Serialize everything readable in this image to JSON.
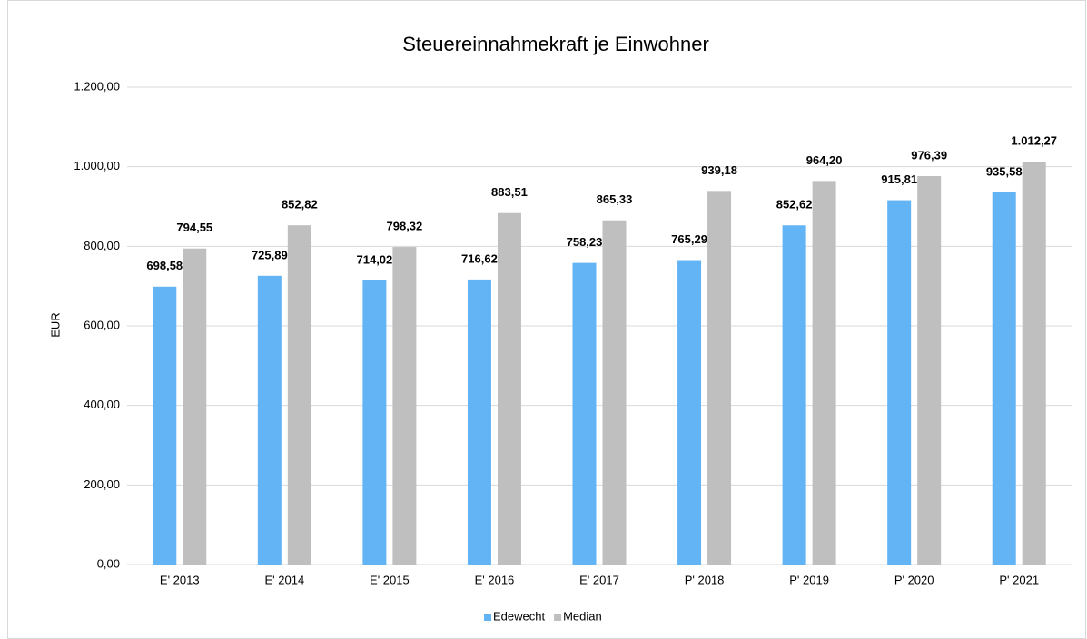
{
  "chart_data": {
    "type": "bar",
    "title": "Steuereinnahmekraft je Einwohner",
    "y_label": "EUR",
    "categories": [
      "E' 2013",
      "E' 2014",
      "E' 2015",
      "E' 2016",
      "E' 2017",
      "P' 2018",
      "P' 2019",
      "P' 2020",
      "P' 2021"
    ],
    "series": [
      {
        "name": "Edewecht",
        "color": "#63b4f4",
        "values": [
          698.58,
          725.89,
          714.02,
          716.62,
          758.23,
          765.29,
          852.62,
          915.81,
          935.58
        ],
        "value_labels": [
          "698,58",
          "725,89",
          "714,02",
          "716,62",
          "758,23",
          "765,29",
          "852,62",
          "915,81",
          "935,58"
        ]
      },
      {
        "name": "Median",
        "color": "#bfbfbf",
        "values": [
          794.55,
          852.82,
          798.32,
          883.51,
          865.33,
          939.18,
          964.2,
          976.39,
          1012.27
        ],
        "value_labels": [
          "794,55",
          "852,82",
          "798,32",
          "883,51",
          "865,33",
          "939,18",
          "964,20",
          "976,39",
          "1.012,27"
        ]
      }
    ],
    "ylim": [
      0,
      1200
    ],
    "yticks": [
      {
        "value": 0,
        "label": "0,00"
      },
      {
        "value": 200,
        "label": "200,00"
      },
      {
        "value": 400,
        "label": "400,00"
      },
      {
        "value": 600,
        "label": "600,00"
      },
      {
        "value": 800,
        "label": "800,00"
      },
      {
        "value": 1000,
        "label": "1.000,00"
      },
      {
        "value": 1200,
        "label": "1.200,00"
      }
    ],
    "grid": true,
    "legend": "bottom"
  }
}
